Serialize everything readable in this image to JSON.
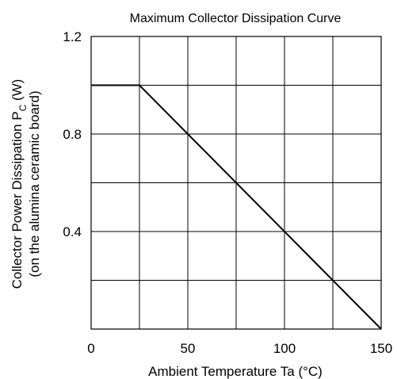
{
  "chart_data": {
    "type": "line",
    "title": "Maximum Collector Dissipation Curve",
    "xlabel": "Ambient Temperature  Ta  (°C)",
    "ylabel": {
      "line1_prefix": "Collector Power Dissipation  P",
      "line1_sub": "C",
      "line1_suffix": " (W)",
      "line2": "(on the alumina ceramic board)"
    },
    "xlim": [
      0,
      150
    ],
    "ylim": [
      0,
      1.2
    ],
    "x_grid": [
      0,
      25,
      50,
      75,
      100,
      125,
      150
    ],
    "y_grid": [
      0,
      0.2,
      0.4,
      0.6,
      0.8,
      1.0,
      1.2
    ],
    "x_ticks": [
      {
        "value": 0,
        "label": "0"
      },
      {
        "value": 50,
        "label": "50"
      },
      {
        "value": 100,
        "label": "100"
      },
      {
        "value": 150,
        "label": "150"
      }
    ],
    "y_ticks": [
      {
        "value": 0.4,
        "label": "0.4"
      },
      {
        "value": 0.8,
        "label": "0.8"
      },
      {
        "value": 1.2,
        "label": "1.2"
      }
    ],
    "grid": true,
    "series": [
      {
        "x": [
          0,
          25,
          150
        ],
        "y": [
          1.0,
          1.0,
          0
        ]
      }
    ]
  }
}
